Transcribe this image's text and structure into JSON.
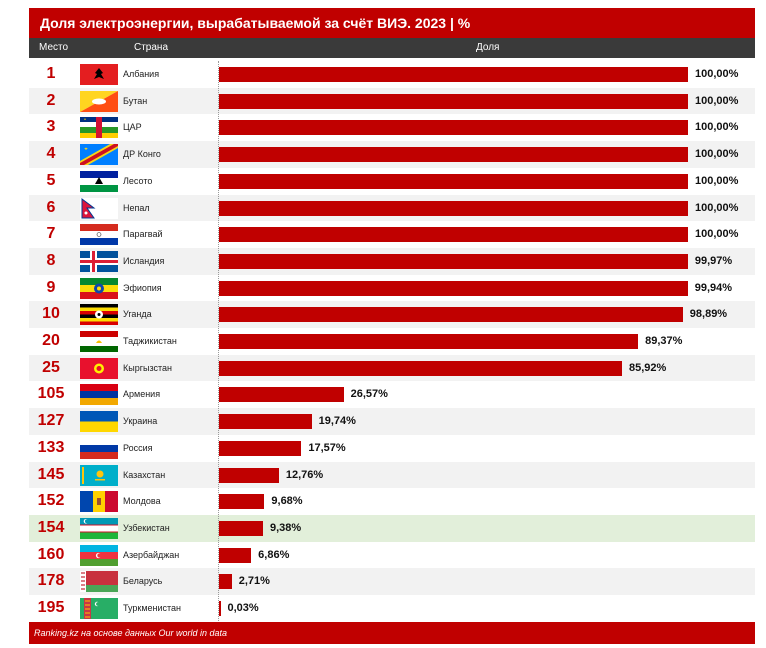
{
  "title": "Доля электроэнергии, вырабатываемой за счёт ВИЭ. 2023 | %",
  "headers": {
    "rank": "Место",
    "country": "Страна",
    "share": "Доля"
  },
  "footer": "Ranking.kz на основе данных Our world in data",
  "colors": {
    "accent": "#c00000",
    "header": "#3a3a3a",
    "highlight": "#e2efda"
  },
  "chart_data": {
    "type": "bar",
    "orientation": "horizontal",
    "title": "Доля электроэнергии, вырабатываемой за счёт ВИЭ. 2023 | %",
    "xlim": [
      0,
      100
    ],
    "highlighted_category": "Узбекистан",
    "rows": [
      {
        "rank": "1",
        "country": "Албания",
        "value": 100.0,
        "label": "100,00%",
        "flag": "albania-flag-icon"
      },
      {
        "rank": "2",
        "country": "Бутан",
        "value": 100.0,
        "label": "100,00%",
        "flag": "bhutan-flag-icon"
      },
      {
        "rank": "3",
        "country": "ЦАР",
        "value": 100.0,
        "label": "100,00%",
        "flag": "car-flag-icon"
      },
      {
        "rank": "4",
        "country": "ДР Конго",
        "value": 100.0,
        "label": "100,00%",
        "flag": "drc-flag-icon"
      },
      {
        "rank": "5",
        "country": "Лесото",
        "value": 100.0,
        "label": "100,00%",
        "flag": "lesotho-flag-icon"
      },
      {
        "rank": "6",
        "country": "Непал",
        "value": 100.0,
        "label": "100,00%",
        "flag": "nepal-flag-icon"
      },
      {
        "rank": "7",
        "country": "Парагвай",
        "value": 100.0,
        "label": "100,00%",
        "flag": "paraguay-flag-icon"
      },
      {
        "rank": "8",
        "country": "Исландия",
        "value": 99.97,
        "label": "99,97%",
        "flag": "iceland-flag-icon"
      },
      {
        "rank": "9",
        "country": "Эфиопия",
        "value": 99.94,
        "label": "99,94%",
        "flag": "ethiopia-flag-icon"
      },
      {
        "rank": "10",
        "country": "Уганда",
        "value": 98.89,
        "label": "98,89%",
        "flag": "uganda-flag-icon"
      },
      {
        "rank": "20",
        "country": "Таджикистан",
        "value": 89.37,
        "label": "89,37%",
        "flag": "tajikistan-flag-icon"
      },
      {
        "rank": "25",
        "country": "Кыргызстан",
        "value": 85.92,
        "label": "85,92%",
        "flag": "kyrgyzstan-flag-icon"
      },
      {
        "rank": "105",
        "country": "Армения",
        "value": 26.57,
        "label": "26,57%",
        "flag": "armenia-flag-icon"
      },
      {
        "rank": "127",
        "country": "Украина",
        "value": 19.74,
        "label": "19,74%",
        "flag": "ukraine-flag-icon"
      },
      {
        "rank": "133",
        "country": "Россия",
        "value": 17.57,
        "label": "17,57%",
        "flag": "russia-flag-icon"
      },
      {
        "rank": "145",
        "country": "Казахстан",
        "value": 12.76,
        "label": "12,76%",
        "flag": "kazakhstan-flag-icon"
      },
      {
        "rank": "152",
        "country": "Молдова",
        "value": 9.68,
        "label": "9,68%",
        "flag": "moldova-flag-icon"
      },
      {
        "rank": "154",
        "country": "Узбекистан",
        "value": 9.38,
        "label": "9,38%",
        "flag": "uzbekistan-flag-icon"
      },
      {
        "rank": "160",
        "country": "Азербайджан",
        "value": 6.86,
        "label": "6,86%",
        "flag": "azerbaijan-flag-icon"
      },
      {
        "rank": "178",
        "country": "Беларусь",
        "value": 2.71,
        "label": "2,71%",
        "flag": "belarus-flag-icon"
      },
      {
        "rank": "195",
        "country": "Туркменистан",
        "value": 0.03,
        "label": "0,03%",
        "flag": "turkmenistan-flag-icon"
      }
    ]
  }
}
